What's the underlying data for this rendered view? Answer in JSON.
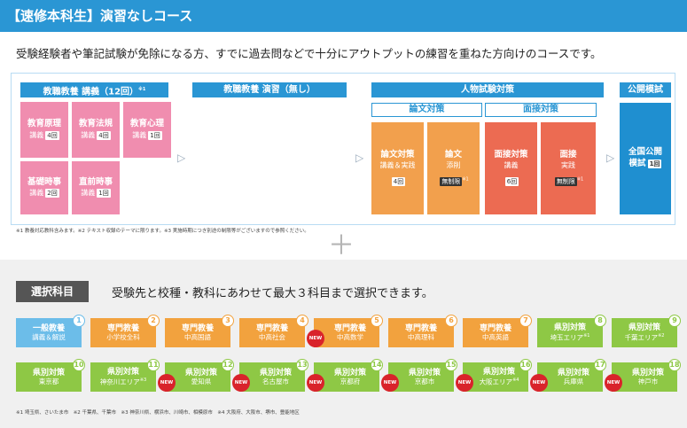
{
  "header": {
    "title": "【速修本科生】演習なしコース"
  },
  "subtitle": "受験経験者や筆記試験が免除になる方、すでに過去問などで十分にアウトプットの練習を重ねた方向けのコースです。",
  "flow": {
    "col1_title": "教職教養 講義（12回）",
    "col1_note": "※1",
    "col2_title": "教職教養 演習（無し）",
    "col3_title": "人物試験対策",
    "col3_sub1": "論文対策",
    "col3_sub2": "面接対策",
    "col4_title": "公開模試",
    "lectures": [
      {
        "title": "教育原理",
        "sub": "講義",
        "count": "4回"
      },
      {
        "title": "教育法規",
        "sub": "講義",
        "count": "4回"
      },
      {
        "title": "教育心理",
        "sub": "講義",
        "count": "1回"
      },
      {
        "title": "基礎時事",
        "sub": "講義",
        "count": "2回"
      },
      {
        "title": "直前時事",
        "sub": "講義",
        "count": "1回"
      }
    ],
    "person": [
      {
        "title": "論文対策",
        "sub": "講義＆実践",
        "count": "4回"
      },
      {
        "title": "論文",
        "sub": "添削",
        "count": "無制限",
        "note": "※1"
      },
      {
        "title": "面接対策",
        "sub": "講義",
        "count": "6回"
      },
      {
        "title": "面接",
        "sub": "実践",
        "count": "無制限",
        "note": "※1"
      }
    ],
    "mock": {
      "title": "全国公開",
      "title2": "模試",
      "count": "1回"
    },
    "arrow": "▷",
    "footnote": "※1 教養対応教科含みます。※2 テキスト収録のテーマに限ります。※3 実施時期につき別途の制限等がございますので参照ください。"
  },
  "plus": "＋",
  "select": {
    "label": "選択科目",
    "desc": "受験先と校種・教科にあわせて最大３科目まで選択できます。",
    "new_label": "NEW",
    "items": [
      {
        "num": "1",
        "a": "一般教養",
        "b": "講義＆解説",
        "color": "blue",
        "isnew": false
      },
      {
        "num": "2",
        "a": "専門教養",
        "b": "小学校全科",
        "color": "orange",
        "isnew": false
      },
      {
        "num": "3",
        "a": "専門教養",
        "b": "中高国語",
        "color": "orange",
        "isnew": false
      },
      {
        "num": "4",
        "a": "専門教養",
        "b": "中高社会",
        "color": "orange",
        "isnew": false
      },
      {
        "num": "5",
        "a": "専門教養",
        "b": "中高数学",
        "color": "orange",
        "isnew": true
      },
      {
        "num": "6",
        "a": "専門教養",
        "b": "中高理科",
        "color": "orange",
        "isnew": false
      },
      {
        "num": "7",
        "a": "専門教養",
        "b": "中高英語",
        "color": "orange",
        "isnew": false
      },
      {
        "num": "8",
        "a": "県別対策",
        "b": "埼玉エリア",
        "note": "※1",
        "color": "green",
        "isnew": false
      },
      {
        "num": "9",
        "a": "県別対策",
        "b": "千葉エリア",
        "note": "※2",
        "color": "green",
        "isnew": false
      },
      {
        "num": "10",
        "a": "県別対策",
        "b": "東京都",
        "color": "green",
        "isnew": false
      },
      {
        "num": "11",
        "a": "県別対策",
        "b": "神奈川エリア",
        "note": "※3",
        "color": "green",
        "isnew": false
      },
      {
        "num": "12",
        "a": "県別対策",
        "b": "愛知県",
        "color": "green",
        "isnew": true
      },
      {
        "num": "13",
        "a": "県別対策",
        "b": "名古屋市",
        "color": "green",
        "isnew": true
      },
      {
        "num": "14",
        "a": "県別対策",
        "b": "京都府",
        "color": "green",
        "isnew": true
      },
      {
        "num": "15",
        "a": "県別対策",
        "b": "京都市",
        "color": "green",
        "isnew": true
      },
      {
        "num": "16",
        "a": "県別対策",
        "b": "大阪エリア",
        "note": "※4",
        "color": "green",
        "isnew": true
      },
      {
        "num": "17",
        "a": "県別対策",
        "b": "兵庫県",
        "color": "green",
        "isnew": true
      },
      {
        "num": "18",
        "a": "県別対策",
        "b": "神戸市",
        "color": "green",
        "isnew": true
      }
    ],
    "footnote": "※1 埼玉県、さいたま市　※2 千葉県、千葉市　※3 神奈川県、横浜市、川崎市、相模原市　※4 大阪府、大阪市、堺市、豊能地区"
  }
}
